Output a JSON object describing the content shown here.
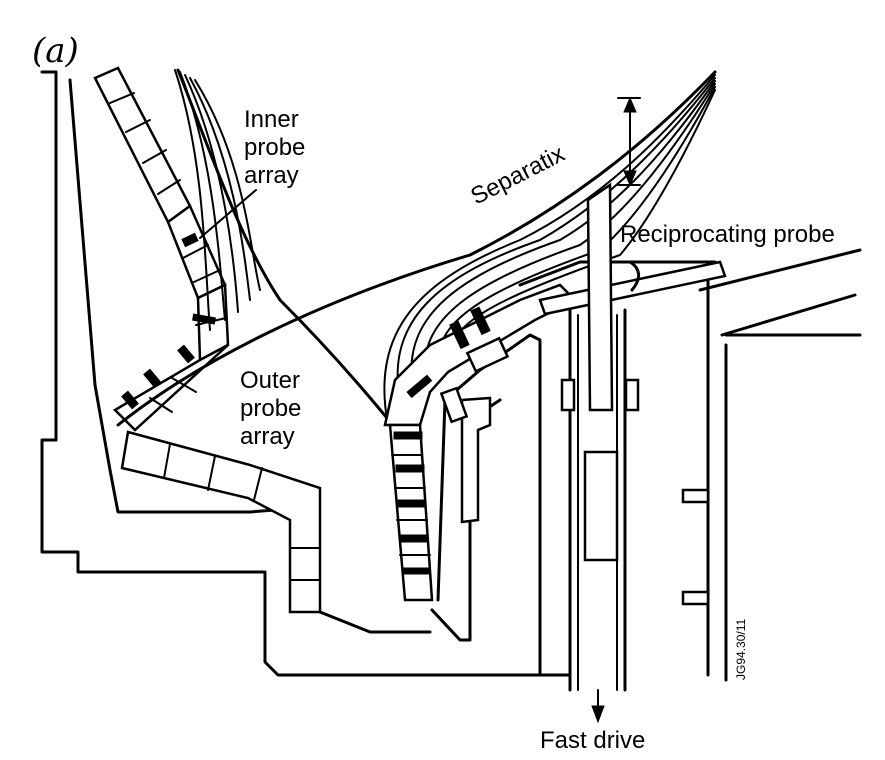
{
  "panel_label": "(a)",
  "labels": {
    "inner_probe_array": [
      "Inner",
      "probe",
      "array"
    ],
    "outer_probe_array": [
      "Outer",
      "probe",
      "array"
    ],
    "separatrix": "Separatix",
    "reciprocating_probe": "Reciprocating probe",
    "fast_drive": "Fast drive",
    "figure_code": "JG94.30/11"
  }
}
